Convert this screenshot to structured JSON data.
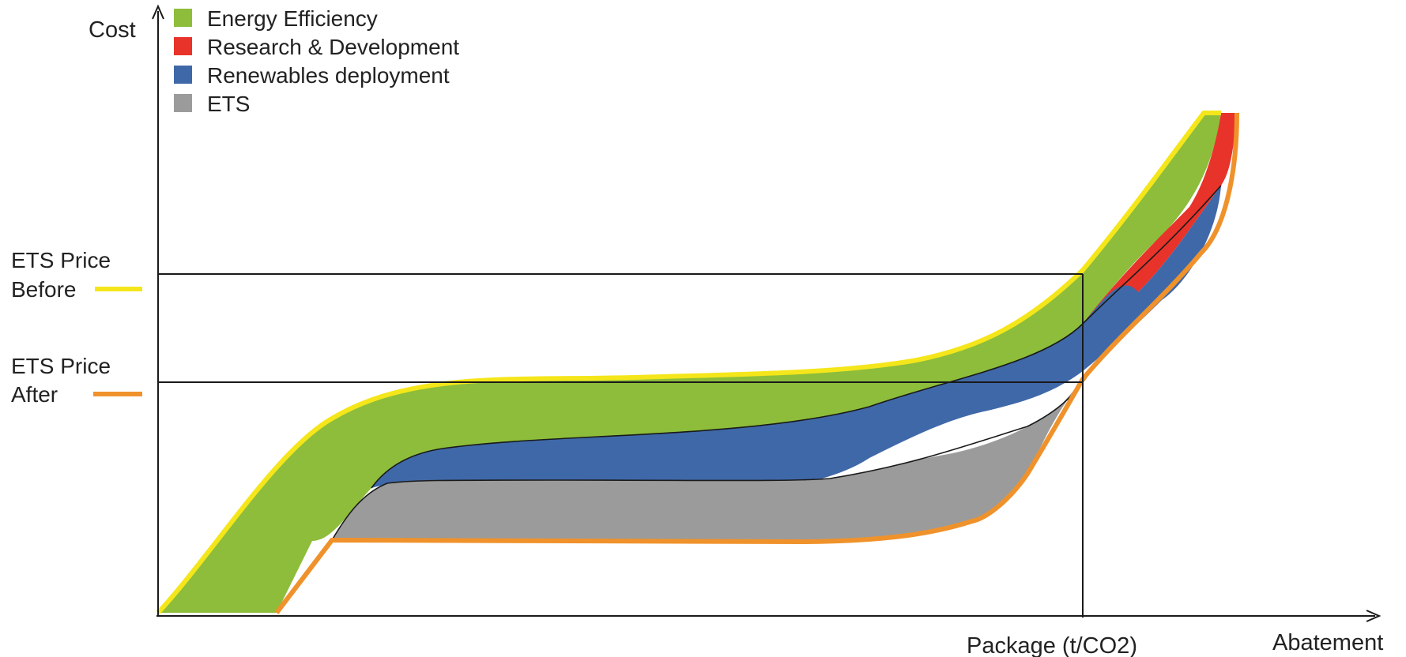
{
  "diagram": {
    "y_axis_label": "Cost",
    "x_axis_label": "Abatement",
    "x_marker_label": "Package (t/CO2)",
    "legend": [
      {
        "key": "energy_efficiency",
        "label": "Energy Efficiency",
        "color": "#8dbd3a"
      },
      {
        "key": "research_development",
        "label": "Research & Development",
        "color": "#e8332a"
      },
      {
        "key": "renewables",
        "label": "Renewables deployment",
        "color": "#3f68a8"
      },
      {
        "key": "ets",
        "label": "ETS",
        "color": "#9b9b9b"
      }
    ],
    "price_before": {
      "line1": "ETS Price",
      "line2": "Before",
      "color": "#f4e61a"
    },
    "price_after": {
      "line1": "ETS Price",
      "line2": "After",
      "color": "#f0922b"
    }
  }
}
